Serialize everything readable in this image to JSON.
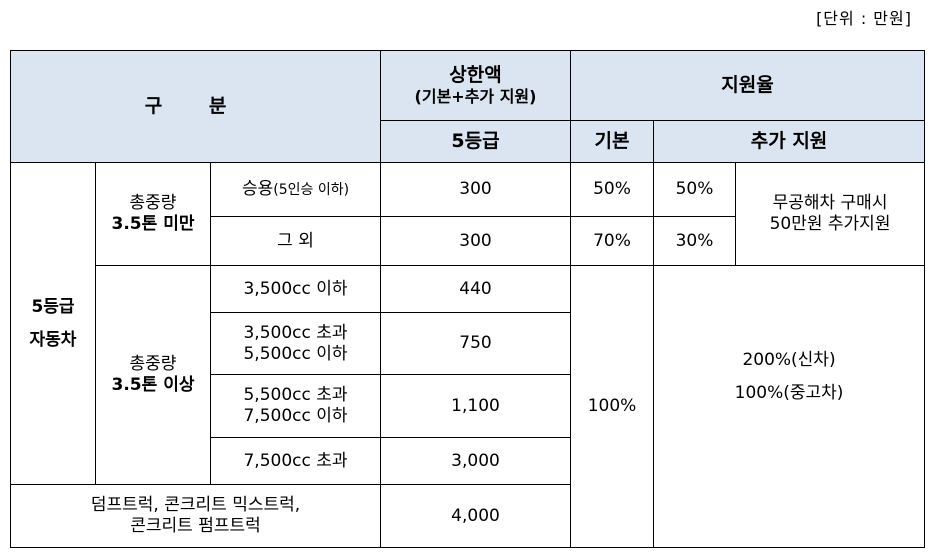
{
  "unit_label": "[단위 : 만원]",
  "table": {
    "header": {
      "category": "구 분",
      "cap_title": "상한액",
      "cap_note": "(기본+추가 지원)",
      "cap_grade": "5등급",
      "rate": "지원율",
      "rate_base": "기본",
      "rate_extra": "추가 지원"
    },
    "vehicle_group": [
      "5등급",
      "자동차"
    ],
    "under": {
      "label": [
        "총중량",
        "3.5톤 미만"
      ],
      "extra_note": [
        "무공해차 구매시",
        "50만원 추가지원"
      ],
      "rows": [
        {
          "type": [
            "승용",
            "(5인승 이하)"
          ],
          "cap": "300",
          "base": "50%",
          "extra": "50%"
        },
        {
          "type": [
            "그 외"
          ],
          "cap": "300",
          "base": "70%",
          "extra": "30%"
        }
      ]
    },
    "over": {
      "label": [
        "총중량",
        "3.5톤 이상"
      ],
      "base": "100%",
      "extra": [
        "200%(신차)",
        "100%(중고차)"
      ],
      "rows": [
        {
          "type": [
            "3,500cc 이하"
          ],
          "cap": "440"
        },
        {
          "type": [
            "3,500cc 초과",
            "5,500cc 이하"
          ],
          "cap": "750"
        },
        {
          "type": [
            "5,500cc 초과",
            "7,500cc 이하"
          ],
          "cap": "1,100"
        },
        {
          "type": [
            "7,500cc 초과"
          ],
          "cap": "3,000"
        }
      ]
    },
    "special": {
      "type": [
        "덤프트럭, 콘크리트 믹스트럭,",
        "콘크리트 펌프트럭"
      ],
      "cap": "4,000"
    }
  }
}
